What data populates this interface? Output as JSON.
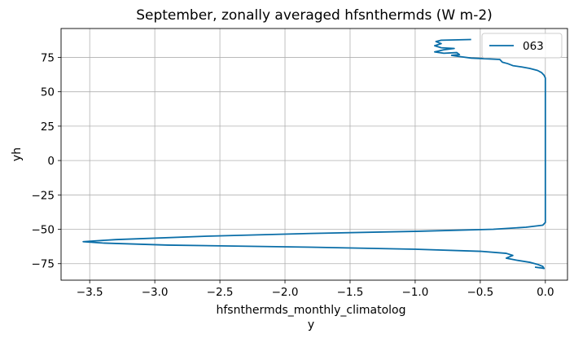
{
  "chart_data": {
    "type": "line",
    "title": "September, zonally averaged hfsnthermds (W m-2)",
    "xlabel_line1": "hfsnthermds_monthly_climatolog",
    "xlabel_line2": "y",
    "ylabel": "yh",
    "xlim": [
      -3.72,
      0.17
    ],
    "ylim": [
      -87,
      96
    ],
    "xticks": [
      -3.5,
      -3.0,
      -2.5,
      -2.0,
      -1.5,
      -1.0,
      -0.5,
      0.0
    ],
    "xtick_labels": [
      "−3.5",
      "−3.0",
      "−2.5",
      "−2.0",
      "−1.5",
      "−1.0",
      "−0.5",
      "0.0"
    ],
    "yticks": [
      75,
      50,
      25,
      0,
      -25,
      -50,
      -75
    ],
    "ytick_labels": [
      "75",
      "50",
      "25",
      "0",
      "−25",
      "−50",
      "−75"
    ],
    "grid": true,
    "legend_position": "top-right",
    "series_color": "#0a6ea8",
    "series": [
      {
        "name": "063",
        "points": [
          [
            -0.57,
            88.0
          ],
          [
            -0.8,
            87.5
          ],
          [
            -0.84,
            86.5
          ],
          [
            -0.8,
            85.0
          ],
          [
            -0.85,
            83.5
          ],
          [
            -0.8,
            82.0
          ],
          [
            -0.7,
            81.5
          ],
          [
            -0.78,
            80.5
          ],
          [
            -0.85,
            79.0
          ],
          [
            -0.78,
            78.0
          ],
          [
            -0.68,
            78.5
          ],
          [
            -0.66,
            77.0
          ],
          [
            -0.72,
            76.5
          ],
          [
            -0.65,
            75.5
          ],
          [
            -0.57,
            74.5
          ],
          [
            -0.35,
            73.5
          ],
          [
            -0.33,
            71.5
          ],
          [
            -0.29,
            70.5
          ],
          [
            -0.25,
            69.0
          ],
          [
            -0.18,
            68.0
          ],
          [
            -0.12,
            67.0
          ],
          [
            -0.06,
            65.5
          ],
          [
            -0.03,
            64.0
          ],
          [
            -0.01,
            62.0
          ],
          [
            0.0,
            60.0
          ],
          [
            0.0,
            50.0
          ],
          [
            0.0,
            25.0
          ],
          [
            0.0,
            0.0
          ],
          [
            0.0,
            -25.0
          ],
          [
            0.0,
            -45.0
          ],
          [
            -0.02,
            -47.0
          ],
          [
            -0.15,
            -48.5
          ],
          [
            -0.4,
            -50.0
          ],
          [
            -1.0,
            -51.5
          ],
          [
            -1.8,
            -53.0
          ],
          [
            -2.6,
            -55.0
          ],
          [
            -3.3,
            -57.5
          ],
          [
            -3.55,
            -59.0
          ],
          [
            -3.4,
            -60.0
          ],
          [
            -2.9,
            -61.5
          ],
          [
            -1.8,
            -63.0
          ],
          [
            -1.0,
            -64.5
          ],
          [
            -0.5,
            -66.0
          ],
          [
            -0.3,
            -67.5
          ],
          [
            -0.25,
            -69.0
          ],
          [
            -0.3,
            -71.0
          ],
          [
            -0.22,
            -72.5
          ],
          [
            -0.12,
            -74.0
          ],
          [
            -0.06,
            -75.5
          ],
          [
            -0.02,
            -77.0
          ],
          [
            -0.01,
            -78.5
          ],
          [
            -0.04,
            -78.0
          ],
          [
            -0.08,
            -77.5
          ]
        ]
      }
    ]
  }
}
